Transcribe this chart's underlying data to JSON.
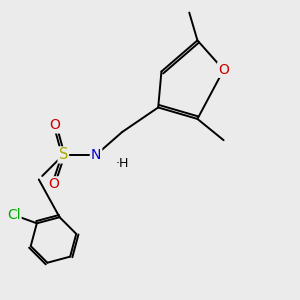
{
  "bg_color": "#ebebeb",
  "atom_colors": {
    "C": "#000000",
    "H": "#000000",
    "N": "#0000cc",
    "O": "#cc0000",
    "S": "#aaaa00",
    "Cl": "#00aa00"
  },
  "bond_color": "#000000",
  "font_size_atom": 8.5,
  "figsize": [
    3.0,
    3.0
  ],
  "dpi": 100,
  "xlim": [
    0.5,
    8.5
  ],
  "ylim": [
    0.5,
    9.5
  ]
}
